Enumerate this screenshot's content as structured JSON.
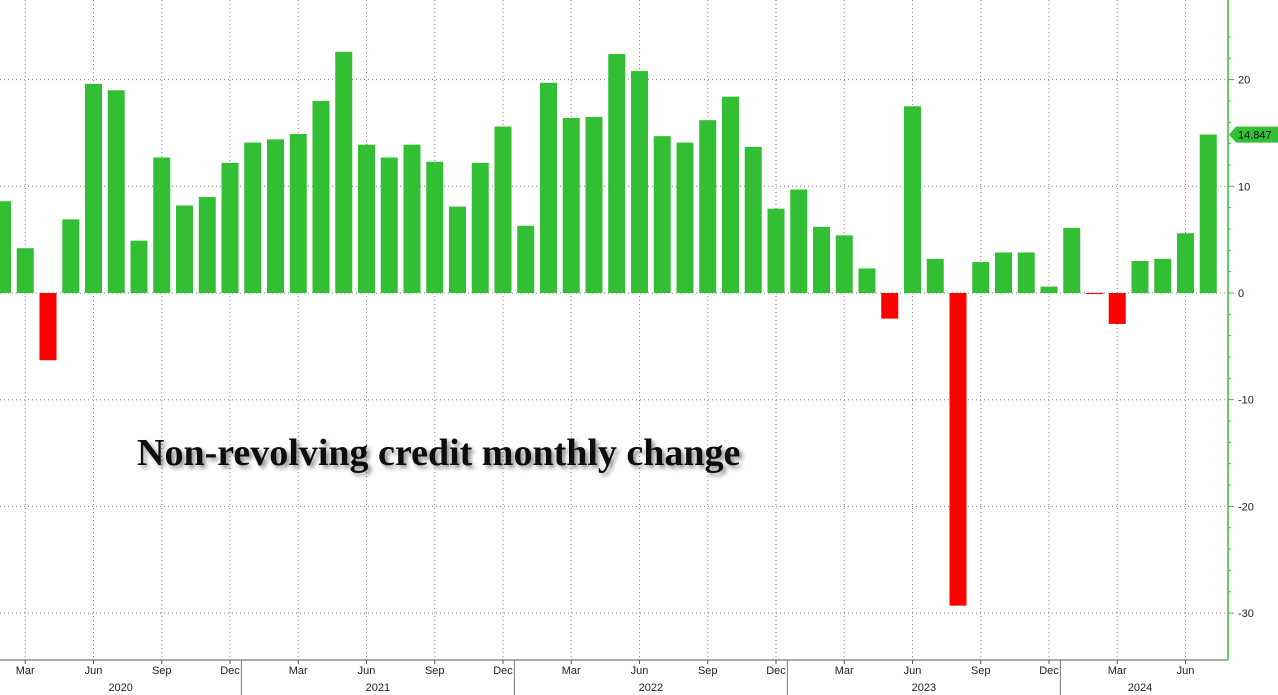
{
  "chart_data": {
    "type": "bar",
    "title": "Non-revolving credit monthly change",
    "xlabel": "",
    "ylabel": "",
    "ylim": [
      -32,
      27
    ],
    "yticks": [
      20,
      10,
      0,
      -10,
      -20,
      -30
    ],
    "colors": {
      "positive": "#33bf33",
      "negative": "#ff0000",
      "axis": "#33bf33",
      "last_label_bg": "#33bf33"
    },
    "last_value_label": "14.847",
    "categories": [
      "2020-02",
      "2020-03",
      "2020-04",
      "2020-05",
      "2020-06",
      "2020-07",
      "2020-08",
      "2020-09",
      "2020-10",
      "2020-11",
      "2020-12",
      "2021-01",
      "2021-02",
      "2021-03",
      "2021-04",
      "2021-05",
      "2021-06",
      "2021-07",
      "2021-08",
      "2021-09",
      "2021-10",
      "2021-11",
      "2021-12",
      "2022-01",
      "2022-02",
      "2022-03",
      "2022-04",
      "2022-05",
      "2022-06",
      "2022-07",
      "2022-08",
      "2022-09",
      "2022-10",
      "2022-11",
      "2022-12",
      "2023-01",
      "2023-02",
      "2023-03",
      "2023-04",
      "2023-05",
      "2023-06",
      "2023-07",
      "2023-08",
      "2023-09",
      "2023-10",
      "2023-11",
      "2023-12",
      "2024-01",
      "2024-02",
      "2024-03",
      "2024-04",
      "2024-05",
      "2024-06",
      "2024-07"
    ],
    "values": [
      8.6,
      4.2,
      -6.3,
      6.9,
      19.6,
      19.0,
      4.9,
      12.7,
      8.2,
      9.0,
      12.2,
      14.1,
      14.4,
      14.9,
      18.0,
      22.6,
      13.9,
      12.7,
      13.9,
      12.3,
      8.1,
      12.2,
      15.6,
      6.3,
      19.7,
      16.4,
      16.5,
      22.4,
      20.8,
      14.7,
      14.1,
      16.2,
      18.4,
      13.7,
      7.9,
      9.7,
      6.2,
      5.4,
      2.3,
      -2.4,
      17.5,
      3.2,
      -29.3,
      2.9,
      3.8,
      3.8,
      0.6,
      6.1,
      -0.1,
      -2.9,
      3.0,
      3.2,
      5.6,
      14.847
    ],
    "x_month_labels": [
      "Mar",
      "Jun",
      "Sep",
      "Dec",
      "Mar",
      "Jun",
      "Sep",
      "Dec",
      "Mar",
      "Jun",
      "Sep",
      "Dec",
      "Mar",
      "Jun",
      "Sep",
      "Dec",
      "Mar",
      "Jun"
    ],
    "x_year_labels": [
      "2020",
      "2021",
      "2022",
      "2023",
      "2024"
    ],
    "grid": true
  }
}
